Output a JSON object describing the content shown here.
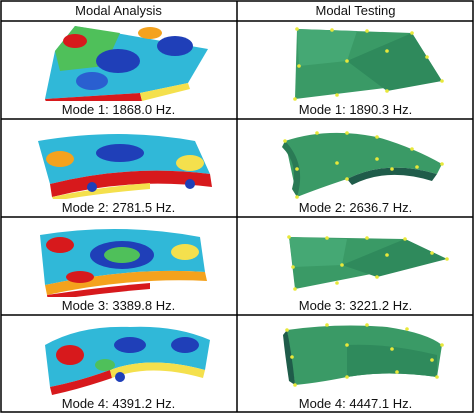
{
  "table": {
    "headers": [
      "Modal Analysis",
      "Modal Testing"
    ],
    "rows": [
      {
        "analysis": "Mode 1: 1868.0 Hz.",
        "testing": "Mode 1: 1890.3 Hz."
      },
      {
        "analysis": "Mode 2: 2781.5 Hz.",
        "testing": "Mode 2: 2636.7 Hz."
      },
      {
        "analysis": "Mode 3: 3389.8 Hz.",
        "testing": "Mode 3: 3221.2 Hz."
      },
      {
        "analysis": "Mode 4: 4391.2 Hz.",
        "testing": "Mode 4: 4447.1 Hz."
      }
    ]
  },
  "colors": {
    "border": "#000000",
    "fe_red": "#d7191c",
    "fe_yellow": "#f4e04d",
    "fe_green": "#4fc05a",
    "fe_cyan": "#30b8d8",
    "fe_blue": "#1f3fb8",
    "test_green": "#3a9a66",
    "test_dark": "#1f5c4a",
    "test_point": "#e8e83a"
  },
  "images": [
    "fe-mode-1-plot",
    "test-mode-1-plot",
    "fe-mode-2-plot",
    "test-mode-2-plot",
    "fe-mode-3-plot",
    "test-mode-3-plot",
    "fe-mode-4-plot",
    "test-mode-4-plot"
  ]
}
